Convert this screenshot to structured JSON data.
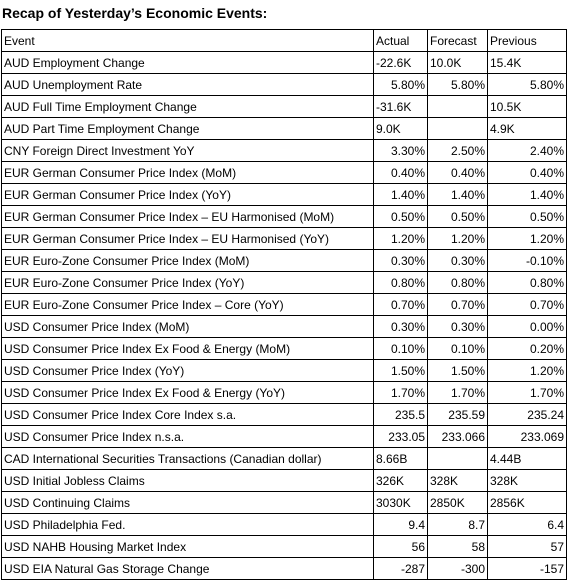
{
  "title": "Recap of Yesterday’s Economic Events:",
  "headers": [
    "Event",
    "Actual",
    "Forecast",
    "Previous"
  ],
  "rows": [
    {
      "event": "AUD Employment Change",
      "actual": "-22.6K",
      "forecast": "10.0K",
      "previous": "15.4K",
      "align": [
        "l",
        "l",
        "l"
      ]
    },
    {
      "event": "AUD Unemployment Rate",
      "actual": "5.80%",
      "forecast": "5.80%",
      "previous": "5.80%",
      "align": [
        "r",
        "r",
        "r"
      ]
    },
    {
      "event": "AUD Full Time Employment Change",
      "actual": "-31.6K",
      "forecast": "",
      "previous": "10.5K",
      "align": [
        "l",
        "l",
        "l"
      ]
    },
    {
      "event": "AUD Part Time Employment Change",
      "actual": "9.0K",
      "forecast": "",
      "previous": "4.9K",
      "align": [
        "l",
        "l",
        "l"
      ]
    },
    {
      "event": "CNY Foreign Direct Investment YoY",
      "actual": "3.30%",
      "forecast": "2.50%",
      "previous": "2.40%",
      "align": [
        "r",
        "r",
        "r"
      ]
    },
    {
      "event": "EUR German Consumer Price Index (MoM)",
      "actual": "0.40%",
      "forecast": "0.40%",
      "previous": "0.40%",
      "align": [
        "r",
        "r",
        "r"
      ]
    },
    {
      "event": "EUR German Consumer Price Index (YoY)",
      "actual": "1.40%",
      "forecast": "1.40%",
      "previous": "1.40%",
      "align": [
        "r",
        "r",
        "r"
      ]
    },
    {
      "event": "EUR German Consumer Price Index – EU Harmonised (MoM)",
      "actual": "0.50%",
      "forecast": "0.50%",
      "previous": "0.50%",
      "align": [
        "r",
        "r",
        "r"
      ]
    },
    {
      "event": "EUR German Consumer Price Index – EU Harmonised (YoY)",
      "actual": "1.20%",
      "forecast": "1.20%",
      "previous": "1.20%",
      "align": [
        "r",
        "r",
        "r"
      ]
    },
    {
      "event": "EUR Euro-Zone Consumer Price Index (MoM)",
      "actual": "0.30%",
      "forecast": "0.30%",
      "previous": "-0.10%",
      "align": [
        "r",
        "r",
        "r"
      ]
    },
    {
      "event": "EUR Euro-Zone Consumer Price Index (YoY)",
      "actual": "0.80%",
      "forecast": "0.80%",
      "previous": "0.80%",
      "align": [
        "r",
        "r",
        "r"
      ]
    },
    {
      "event": "EUR Euro-Zone Consumer Price Index – Core (YoY)",
      "actual": "0.70%",
      "forecast": "0.70%",
      "previous": "0.70%",
      "align": [
        "r",
        "r",
        "r"
      ]
    },
    {
      "event": "USD Consumer Price Index (MoM)",
      "actual": "0.30%",
      "forecast": "0.30%",
      "previous": "0.00%",
      "align": [
        "r",
        "r",
        "r"
      ]
    },
    {
      "event": "USD Consumer Price Index Ex Food & Energy (MoM)",
      "actual": "0.10%",
      "forecast": "0.10%",
      "previous": "0.20%",
      "align": [
        "r",
        "r",
        "r"
      ]
    },
    {
      "event": "USD Consumer Price Index (YoY)",
      "actual": "1.50%",
      "forecast": "1.50%",
      "previous": "1.20%",
      "align": [
        "r",
        "r",
        "r"
      ]
    },
    {
      "event": "USD Consumer Price Index Ex Food & Energy (YoY)",
      "actual": "1.70%",
      "forecast": "1.70%",
      "previous": "1.70%",
      "align": [
        "r",
        "r",
        "r"
      ]
    },
    {
      "event": "USD Consumer Price Index Core Index s.a.",
      "actual": "235.5",
      "forecast": "235.59",
      "previous": "235.24",
      "align": [
        "r",
        "r",
        "r"
      ]
    },
    {
      "event": "USD Consumer Price Index n.s.a.",
      "actual": "233.05",
      "forecast": "233.066",
      "previous": "233.069",
      "align": [
        "r",
        "r",
        "r"
      ]
    },
    {
      "event": "CAD International Securities Transactions (Canadian dollar)",
      "actual": "8.66B",
      "forecast": "",
      "previous": "4.44B",
      "align": [
        "l",
        "l",
        "l"
      ]
    },
    {
      "event": "USD Initial Jobless Claims",
      "actual": "326K",
      "forecast": "328K",
      "previous": "328K",
      "align": [
        "l",
        "l",
        "l"
      ]
    },
    {
      "event": "USD Continuing Claims",
      "actual": "3030K",
      "forecast": "2850K",
      "previous": "2856K",
      "align": [
        "l",
        "l",
        "l"
      ]
    },
    {
      "event": "USD Philadelphia Fed.",
      "actual": "9.4",
      "forecast": "8.7",
      "previous": "6.4",
      "align": [
        "r",
        "r",
        "r"
      ]
    },
    {
      "event": "USD NAHB Housing Market Index",
      "actual": "56",
      "forecast": "58",
      "previous": "57",
      "align": [
        "r",
        "r",
        "r"
      ]
    },
    {
      "event": "USD EIA Natural Gas Storage Change",
      "actual": "-287",
      "forecast": "-300",
      "previous": "-157",
      "align": [
        "r",
        "r",
        "r"
      ]
    }
  ]
}
